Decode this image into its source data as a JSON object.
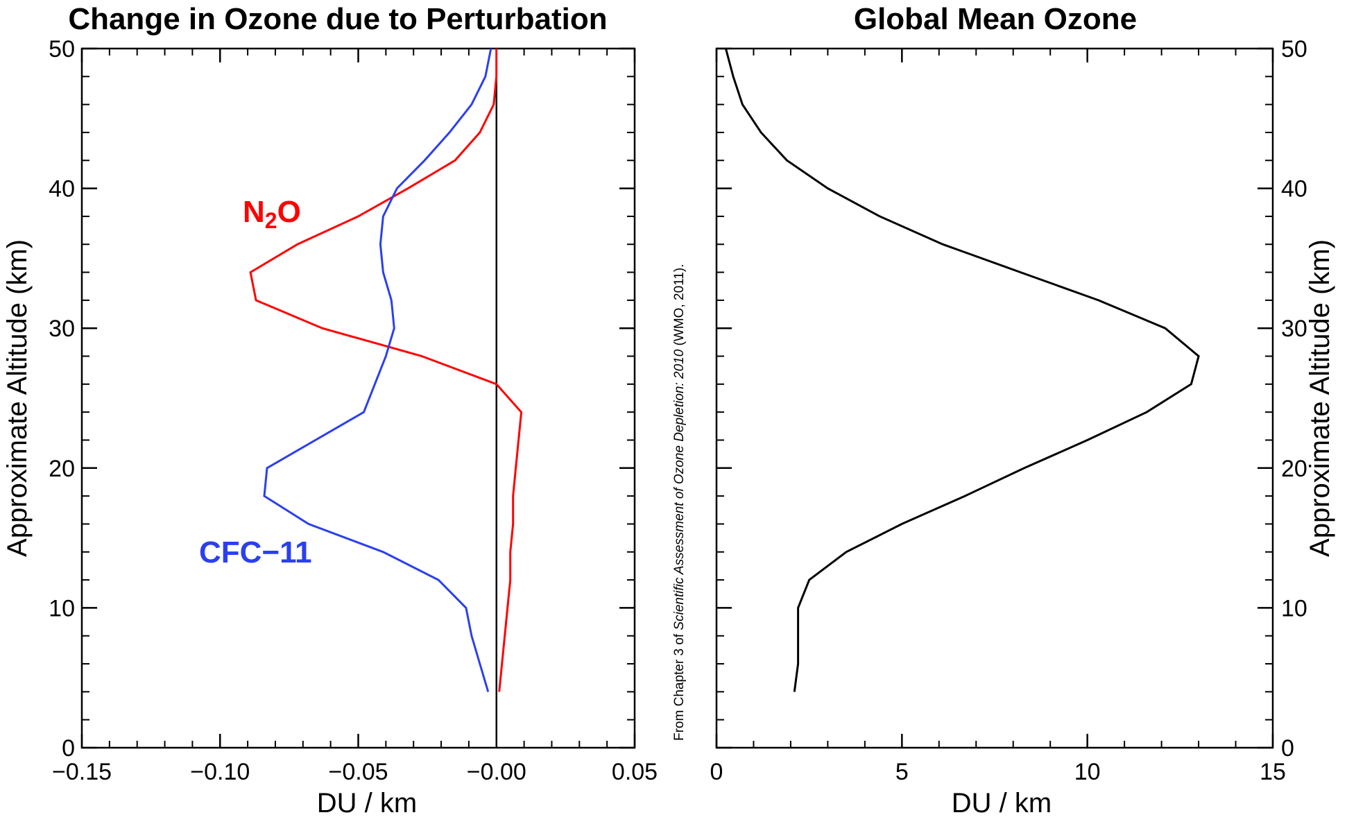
{
  "chart_data": [
    {
      "type": "line",
      "title": "Change in Ozone due to Perturbation",
      "xlabel": "DU / km",
      "ylabel": "Approximate Altitude (km)",
      "xlim": [
        -0.15,
        0.05
      ],
      "ylim": [
        0,
        50
      ],
      "x_ticks": [
        "−0.15",
        "−0.10",
        "−0.05",
        "−0.00",
        "0.05"
      ],
      "x_tick_values": [
        -0.15,
        -0.1,
        -0.05,
        0.0,
        0.05
      ],
      "y_ticks": [
        "0",
        "10",
        "20",
        "30",
        "40",
        "50"
      ],
      "y_tick_values": [
        0,
        10,
        20,
        30,
        40,
        50
      ],
      "reference_line_x": 0,
      "series": [
        {
          "name": "N₂O",
          "label_parts": [
            "N",
            "2",
            "O"
          ],
          "color": "#ff0000",
          "points": [
            [
              0.001,
              4
            ],
            [
              0.002,
              6
            ],
            [
              0.003,
              8
            ],
            [
              0.004,
              10
            ],
            [
              0.005,
              12
            ],
            [
              0.005,
              14
            ],
            [
              0.006,
              16
            ],
            [
              0.006,
              18
            ],
            [
              0.007,
              20
            ],
            [
              0.009,
              24
            ],
            [
              0.0,
              26
            ],
            [
              -0.027,
              28
            ],
            [
              -0.063,
              30
            ],
            [
              -0.087,
              32
            ],
            [
              -0.089,
              34
            ],
            [
              -0.072,
              36
            ],
            [
              -0.05,
              38
            ],
            [
              -0.032,
              40
            ],
            [
              -0.015,
              42
            ],
            [
              -0.006,
              44
            ],
            [
              -0.001,
              46
            ],
            [
              0.0,
              48
            ],
            [
              0.0,
              50
            ]
          ]
        },
        {
          "name": "CFC−11",
          "color": "#2b3ff0",
          "points": [
            [
              -0.003,
              4
            ],
            [
              -0.006,
              6
            ],
            [
              -0.009,
              8
            ],
            [
              -0.011,
              10
            ],
            [
              -0.021,
              12
            ],
            [
              -0.041,
              14
            ],
            [
              -0.068,
              16
            ],
            [
              -0.084,
              18
            ],
            [
              -0.083,
              20
            ],
            [
              -0.048,
              24
            ],
            [
              -0.044,
              26
            ],
            [
              -0.04,
              28
            ],
            [
              -0.037,
              30
            ],
            [
              -0.038,
              32
            ],
            [
              -0.041,
              34
            ],
            [
              -0.042,
              36
            ],
            [
              -0.041,
              38
            ],
            [
              -0.036,
              40
            ],
            [
              -0.026,
              42
            ],
            [
              -0.017,
              44
            ],
            [
              -0.009,
              46
            ],
            [
              -0.004,
              48
            ],
            [
              -0.002,
              50
            ]
          ]
        }
      ]
    },
    {
      "type": "line",
      "title": "Global Mean Ozone",
      "xlabel": "DU / km",
      "ylabel": "Approximate Altitude (km)",
      "xlim": [
        0,
        15
      ],
      "ylim": [
        0,
        50
      ],
      "x_ticks": [
        "0",
        "5",
        "10",
        "15"
      ],
      "x_tick_values": [
        0,
        5,
        10,
        15
      ],
      "y_ticks": [
        "0",
        "10",
        "20",
        "30",
        "40",
        "50"
      ],
      "y_tick_values": [
        0,
        10,
        20,
        30,
        40,
        50
      ],
      "y_axis_side": "right",
      "series": [
        {
          "color": "#000000",
          "points": [
            [
              2.1,
              4
            ],
            [
              2.2,
              6
            ],
            [
              2.2,
              8
            ],
            [
              2.2,
              10
            ],
            [
              2.5,
              12
            ],
            [
              3.5,
              14
            ],
            [
              5.0,
              16
            ],
            [
              6.7,
              18
            ],
            [
              8.3,
              20
            ],
            [
              10.0,
              22
            ],
            [
              11.6,
              24
            ],
            [
              12.8,
              26
            ],
            [
              13.0,
              28
            ],
            [
              12.1,
              30
            ],
            [
              10.3,
              32
            ],
            [
              8.2,
              34
            ],
            [
              6.1,
              36
            ],
            [
              4.4,
              38
            ],
            [
              3.0,
              40
            ],
            [
              1.9,
              42
            ],
            [
              1.2,
              44
            ],
            [
              0.7,
              46
            ],
            [
              0.45,
              48
            ],
            [
              0.25,
              50
            ]
          ]
        }
      ]
    }
  ],
  "credit": {
    "prefix": "From Chapter 3 of ",
    "italic": "Scientific Assessment of Ozone Depletion: 2010",
    "suffix": " (WMO, 2011)."
  }
}
